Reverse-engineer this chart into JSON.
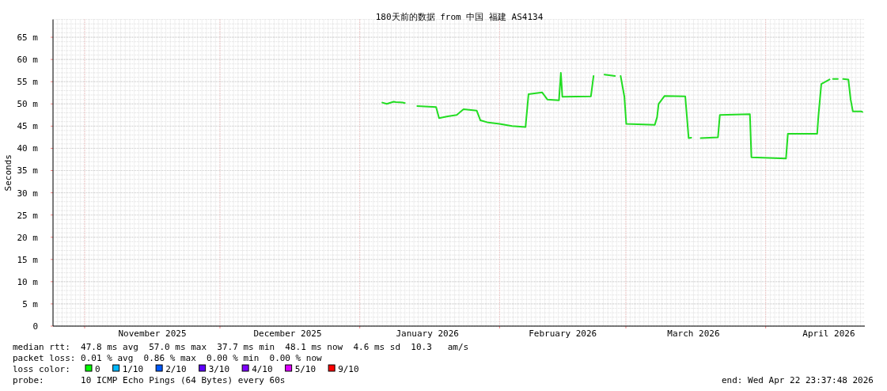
{
  "chart_data": {
    "type": "line",
    "title": "180天前的数据 from 中国 福建 AS4134",
    "ylabel": "Seconds",
    "xlim": [
      "2025-10-24T23:37",
      "2026-04-22T23:37"
    ],
    "ylim": [
      0,
      69
    ],
    "xticks": [
      {
        "value": "2025-11-01",
        "label": null
      },
      {
        "value": "2025-12-01",
        "label": null
      },
      {
        "value": "2026-01-01",
        "label": null
      },
      {
        "value": "2026-02-01",
        "label": null
      },
      {
        "value": "2026-03-01",
        "label": null
      },
      {
        "value": "2026-04-01",
        "label": null
      },
      {
        "value": "2025-11-16",
        "label": "November 2025"
      },
      {
        "value": "2025-12-16",
        "label": "December 2025"
      },
      {
        "value": "2026-01-16",
        "label": "January 2026"
      },
      {
        "value": "2026-02-15",
        "label": "February 2026"
      },
      {
        "value": "2026-03-16",
        "label": "March 2026"
      },
      {
        "value": "2026-04-15",
        "label": "April 2026"
      }
    ],
    "yticks": [
      0,
      {
        "value": 5,
        "label": "5 m"
      },
      {
        "value": 10,
        "label": "10 m"
      },
      {
        "value": 15,
        "label": "15 m"
      },
      {
        "value": 20,
        "label": "20 m"
      },
      {
        "value": 25,
        "label": "25 m"
      },
      {
        "value": 30,
        "label": "30 m"
      },
      {
        "value": 35,
        "label": "35 m"
      },
      {
        "value": 40,
        "label": "40 m"
      },
      {
        "value": 45,
        "label": "45 m"
      },
      {
        "value": 50,
        "label": "50 m"
      },
      {
        "value": 55,
        "label": "55 m"
      },
      {
        "value": 60,
        "label": "60 m"
      },
      {
        "value": 65,
        "label": "65 m"
      }
    ],
    "grid": true,
    "x": [
      "2026-01-06T00:00",
      "2026-01-07T00:00",
      "2026-01-08T12:00",
      "2026-01-09T00:00",
      "2026-01-10T12:00",
      "2026-01-11T00:00",
      "2026-01-12T12:00",
      "2026-01-13T18:00",
      "2026-01-17T22:00",
      "2026-01-18T14:00",
      "2026-01-20T12:00",
      "2026-01-22T12:00",
      "2026-01-24T00:00",
      "2026-01-26T22:00",
      "2026-01-27T18:00",
      "2026-01-29T12:00",
      "2026-02-01T00:00",
      "2026-02-03T18:00",
      "2026-02-06T18:00",
      "2026-02-07T10:00",
      "2026-02-10T10:00",
      "2026-02-11T14:00",
      "2026-02-14T04:00",
      "2026-02-14T14:00",
      "2026-02-14T22:00",
      "2026-02-21T06:00",
      "2026-02-21T20:00",
      "2026-02-23T00:00",
      "2026-02-24T06:00",
      "2026-02-26T14:00",
      "2026-02-27T06:00",
      "2026-02-27T20:00",
      "2026-02-28T16:00",
      "2026-03-01T02:00",
      "2026-03-07T10:00",
      "2026-03-07T22:00",
      "2026-03-08T06:00",
      "2026-03-09T14:00",
      "2026-03-14T04:00",
      "2026-03-14T22:00",
      "2026-03-15T12:00",
      "2026-03-16T12:00",
      "2026-03-17T14:00",
      "2026-03-21T10:00",
      "2026-03-21T20:00",
      "2026-03-28T12:00",
      "2026-03-28T20:00",
      "2026-04-05T12:00",
      "2026-04-05T22:00",
      "2026-04-12T10:00",
      "2026-04-12T16:00",
      "2026-04-13T08:00",
      "2026-04-15T04:00",
      "2026-04-15T12:00",
      "2026-04-15T22:00",
      "2026-04-17T00:00",
      "2026-04-17T12:00",
      "2026-04-18T04:00",
      "2026-04-19T08:00",
      "2026-04-19T20:00",
      "2026-04-20T08:00",
      "2026-04-22T06:00",
      "2026-04-22T10:00"
    ],
    "series": [
      {
        "color": "#22dd22",
        "values": [
          50.3,
          50.0,
          50.5,
          50.4,
          50.3,
          50.2,
          null,
          49.5,
          49.3,
          46.8,
          47.2,
          47.5,
          48.8,
          48.5,
          46.3,
          45.8,
          45.5,
          45.0,
          44.8,
          52.2,
          52.6,
          51.0,
          50.8,
          57.0,
          51.6,
          51.7,
          56.3,
          null,
          56.6,
          56.3,
          null,
          56.3,
          51.6,
          45.5,
          45.3,
          47.0,
          50.0,
          51.8,
          51.7,
          42.3,
          42.4,
          null,
          42.3,
          42.5,
          47.5,
          47.7,
          38.0,
          37.7,
          43.3,
          43.3,
          47.0,
          54.5,
          55.5,
          null,
          55.6,
          55.6,
          null,
          55.6,
          55.5,
          51.0,
          48.3,
          48.3,
          48.2
        ]
      }
    ],
    "annotations": [
      "median rtt:  47.8 ms avg  57.0 ms max  37.7 ms min  48.1 ms now  4.6 ms sd  10.3   am/s",
      "packet loss: 0.01 % avg  0.86 % max  0.00 % min  0.00 % now",
      "loss color:",
      "0",
      "1/10",
      "2/10",
      "3/10",
      "4/10",
      "5/10",
      "9/10",
      "probe:       10 ICMP Echo Pings (64 Bytes) every 60s",
      "end: Wed Apr 22 23:37:48 2026"
    ]
  }
}
